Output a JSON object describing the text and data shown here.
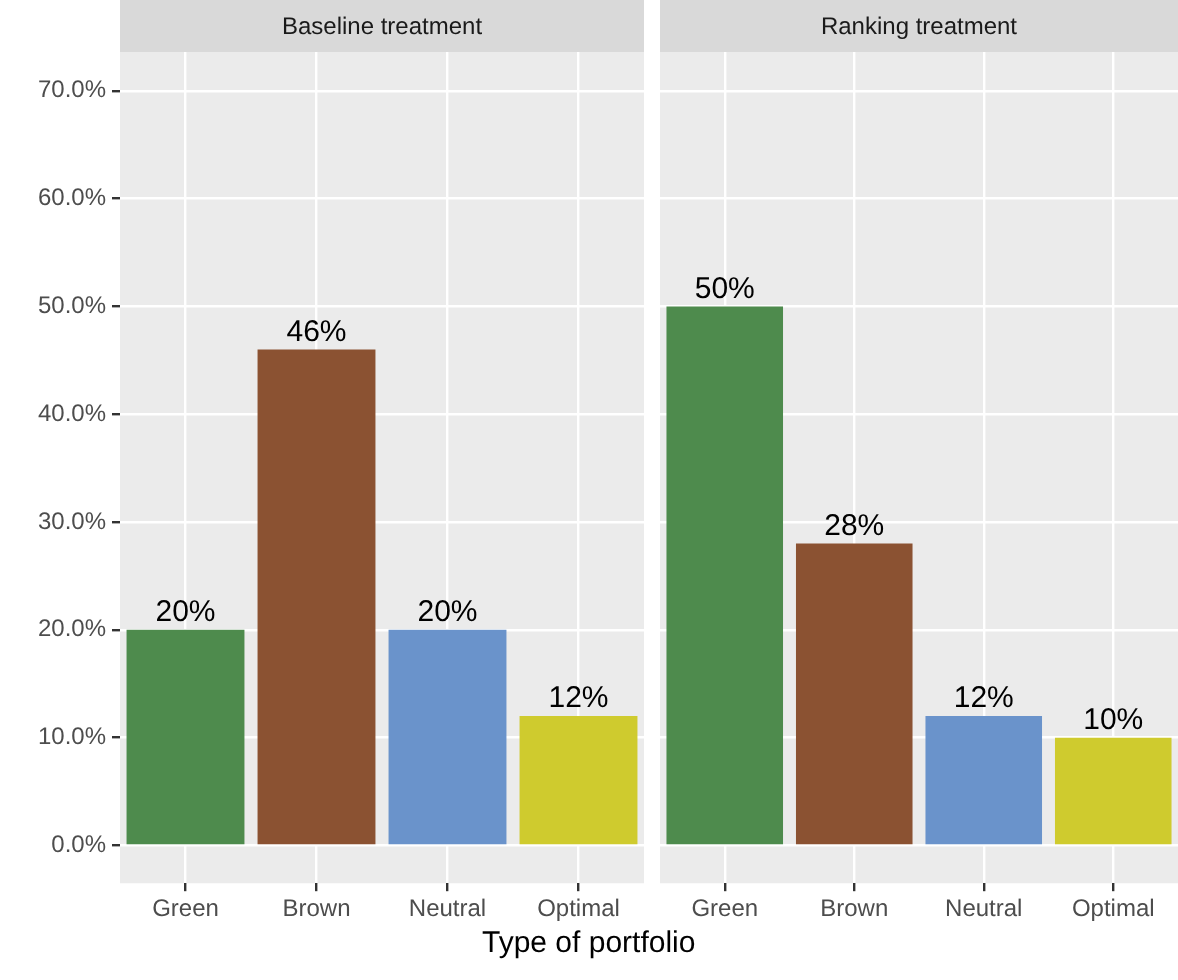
{
  "chart_data": [
    {
      "type": "bar",
      "title": "Baseline treatment",
      "xlabel": "Type of portfolio",
      "categories": [
        "Green",
        "Brown",
        "Neutral",
        "Optimal"
      ],
      "values": [
        20,
        46,
        20,
        12
      ],
      "colors": [
        "#4e8b4d",
        "#8b5232",
        "#6a93cb",
        "#cfcb2e"
      ],
      "value_labels": [
        "20%",
        "46%",
        "20%",
        "12%"
      ],
      "ylim": [
        -3.5,
        73.6
      ],
      "yticks": [
        {
          "value": 0,
          "label": "0.0%"
        },
        {
          "value": 10,
          "label": "10.0%"
        },
        {
          "value": 20,
          "label": "20.0%"
        },
        {
          "value": 30,
          "label": "30.0%"
        },
        {
          "value": 40,
          "label": "40.0%"
        },
        {
          "value": 50,
          "label": "50.0%"
        },
        {
          "value": 60,
          "label": "60.0%"
        },
        {
          "value": 70,
          "label": "70.0%"
        }
      ],
      "grid": true
    },
    {
      "type": "bar",
      "title": "Ranking treatment",
      "categories": [
        "Green",
        "Brown",
        "Neutral",
        "Optimal"
      ],
      "values": [
        50,
        28,
        12,
        10
      ],
      "colors": [
        "#4e8b4d",
        "#8b5232",
        "#6a93cb",
        "#cfcb2e"
      ],
      "value_labels": [
        "50%",
        "28%",
        "12%",
        "10%"
      ],
      "ylim": [
        -3.5,
        73.6
      ],
      "yticks": [
        0,
        10,
        20,
        30,
        40,
        50,
        60,
        70
      ],
      "grid": true,
      "tick_labels": "x"
    }
  ]
}
